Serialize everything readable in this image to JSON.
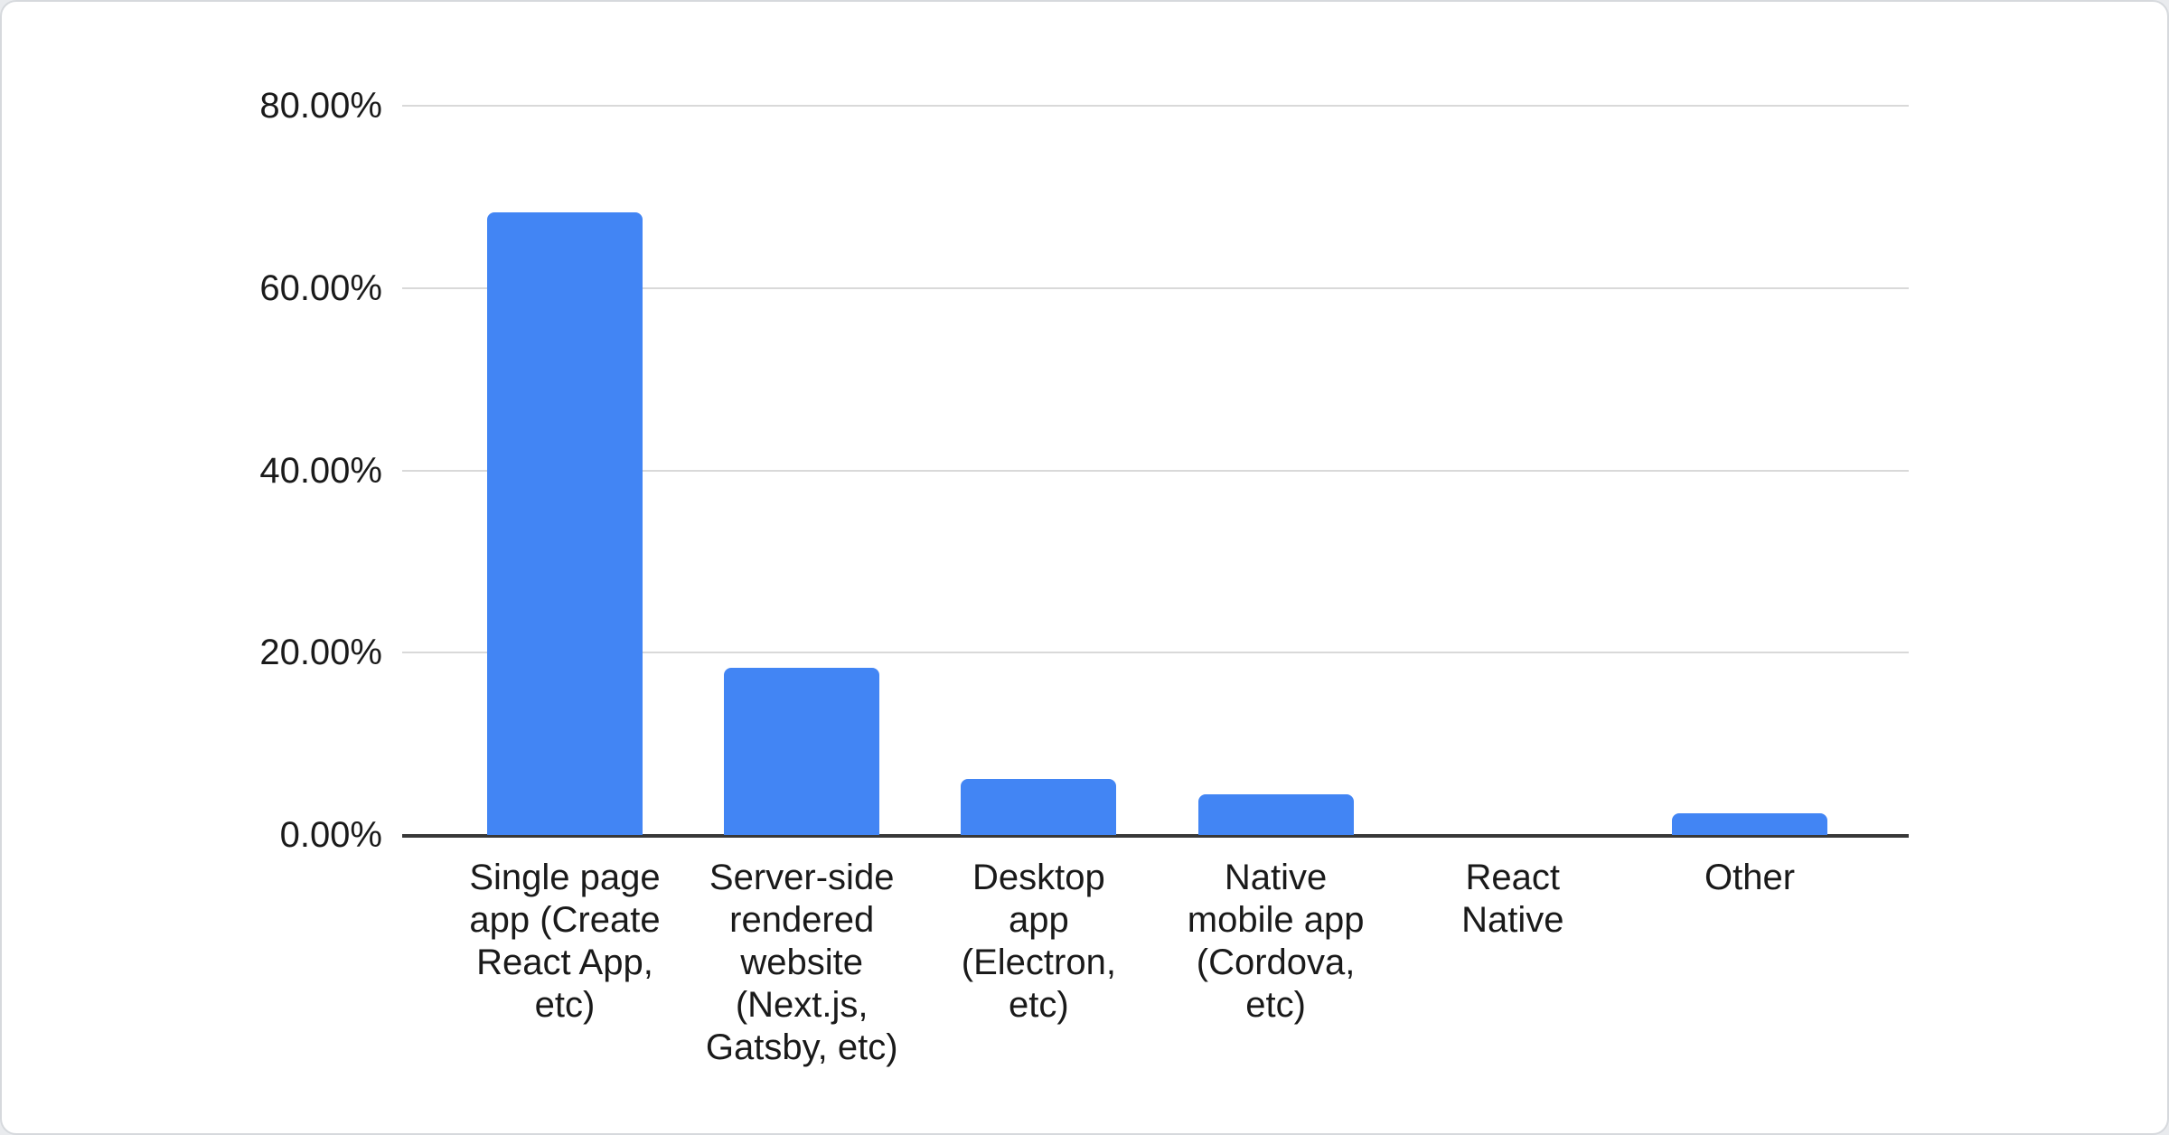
{
  "chart_data": {
    "type": "bar",
    "title": "",
    "categories": [
      "Single page app (Create React App, etc)",
      "Server-side rendered website (Next.js, Gatsby, etc)",
      "Desktop app (Electron, etc)",
      "Native mobile app (Cordova, etc)",
      "React Native",
      "Other"
    ],
    "category_lines": [
      [
        "Single page",
        "app (Create",
        "React App,",
        "etc)"
      ],
      [
        "Server-side",
        "rendered",
        "website",
        "(Next.js,",
        "Gatsby, etc)"
      ],
      [
        "Desktop",
        "app",
        "(Electron,",
        "etc)"
      ],
      [
        "Native",
        "mobile app",
        "(Cordova,",
        "etc)"
      ],
      [
        "React",
        "Native"
      ],
      [
        "Other"
      ]
    ],
    "values": [
      68.3,
      18.3,
      6.1,
      4.5,
      0,
      2.4
    ],
    "xlabel": "",
    "ylabel": "",
    "ylim": [
      0,
      80
    ],
    "yticks": [
      {
        "value": 0,
        "label": "0.00%"
      },
      {
        "value": 20,
        "label": "20.00%"
      },
      {
        "value": 40,
        "label": "40.00%"
      },
      {
        "value": 60,
        "label": "60.00%"
      },
      {
        "value": 80,
        "label": "80.00%"
      }
    ],
    "grid": true,
    "legend": "none",
    "bar_color": "#4285f4",
    "gridline_color": "#d9d9d9",
    "axis_line_color": "#383838",
    "text_color": "#1a1a1a"
  }
}
